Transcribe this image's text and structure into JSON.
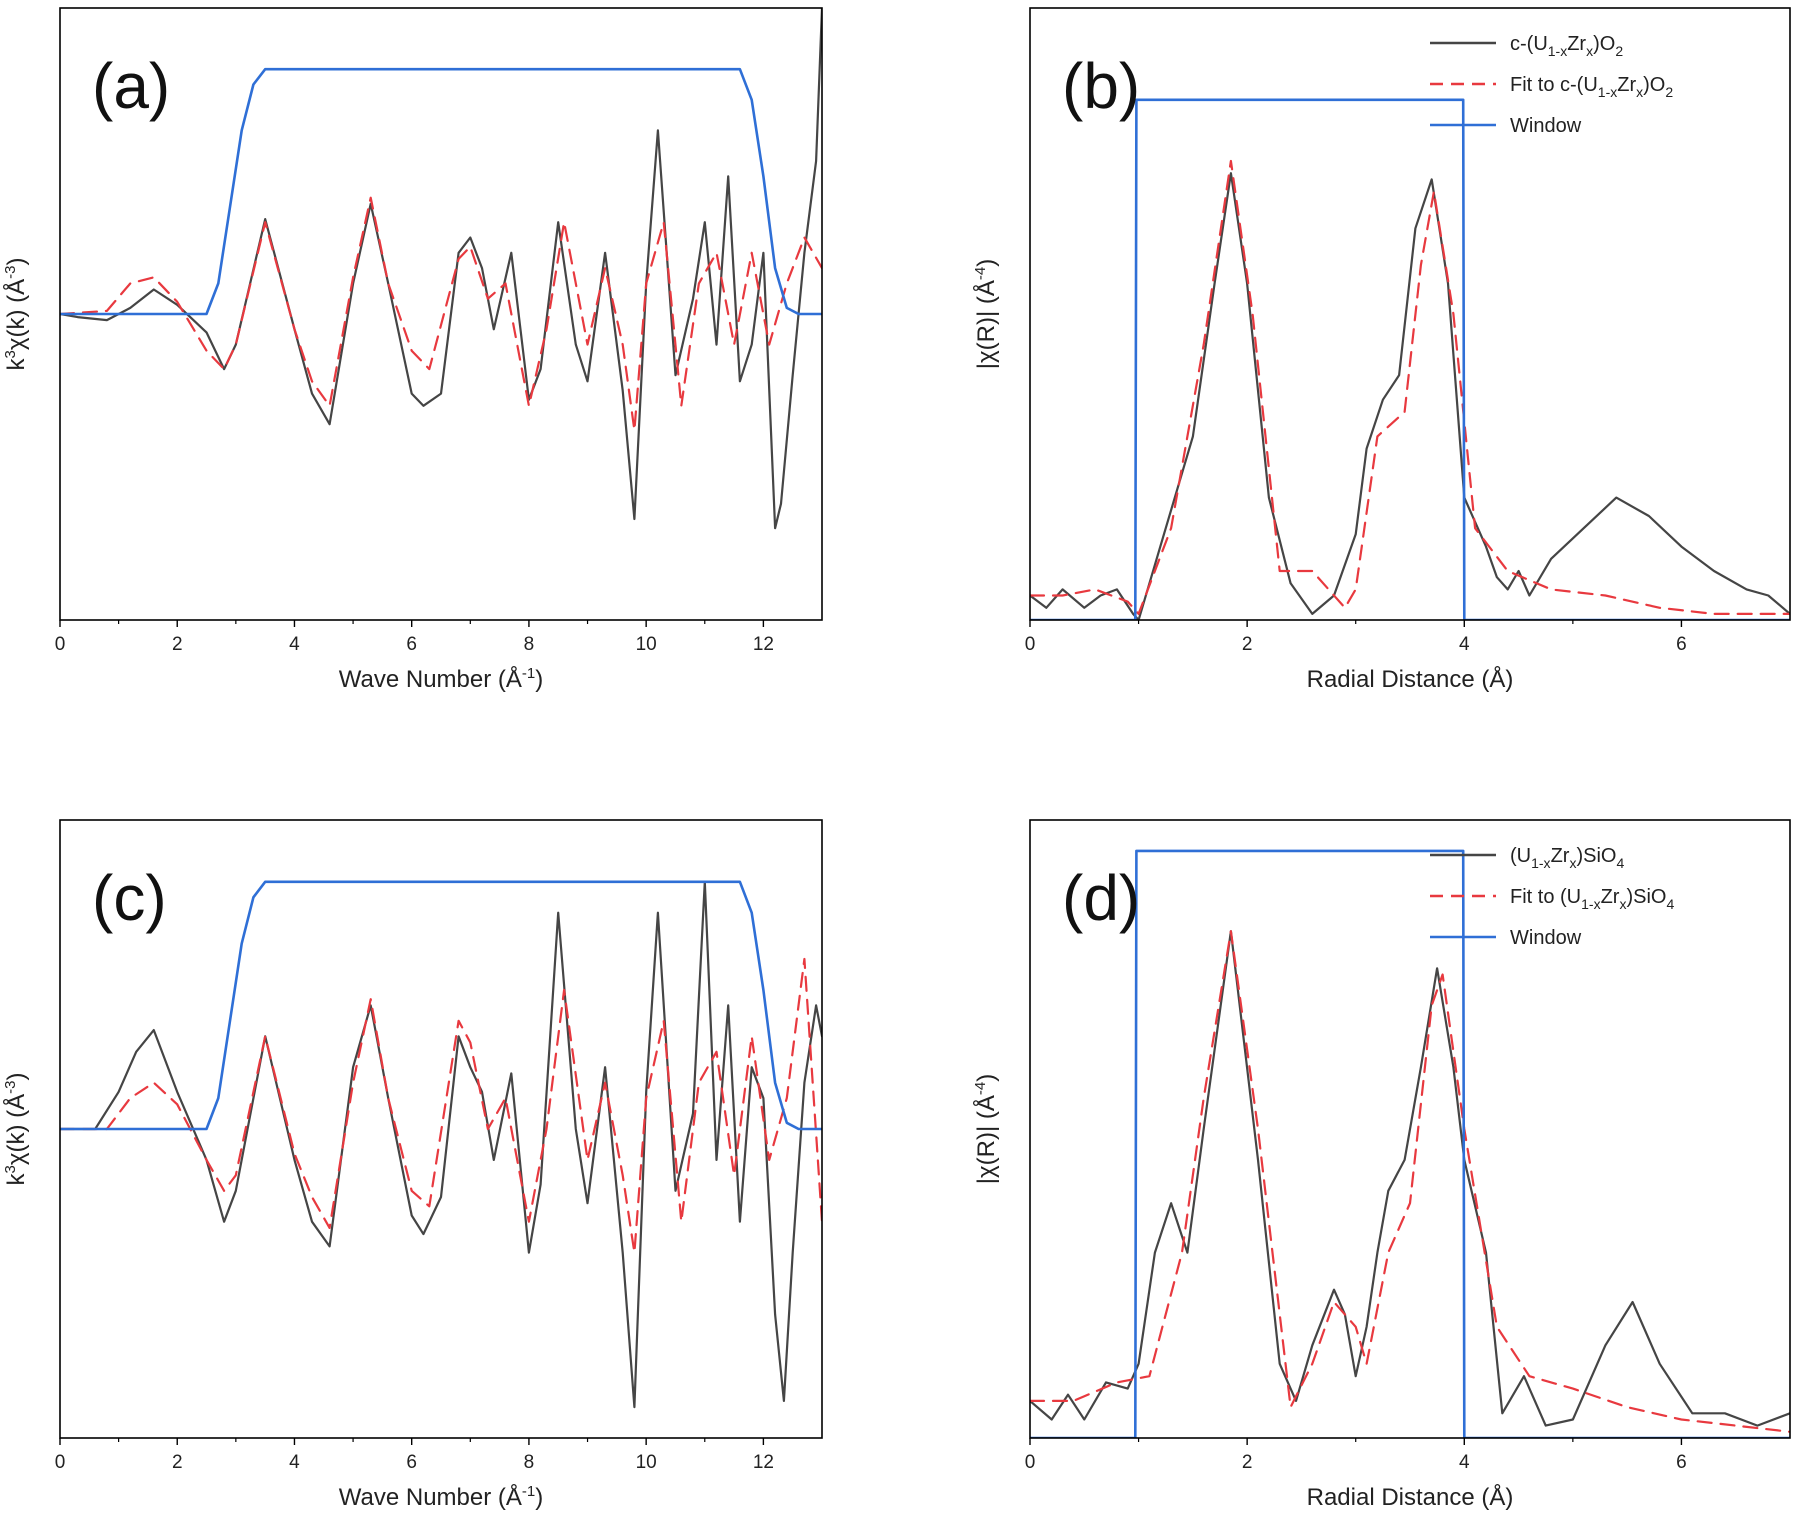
{
  "figure": {
    "colors": {
      "data": "#454545",
      "fit": "#e8393f",
      "window": "#2f6fd6",
      "axis": "#000000"
    }
  },
  "chart_data": [
    {
      "panel": "(a)",
      "type": "line",
      "xlabel_base": "Wave Number (Å",
      "xlabel_sup": "-1",
      "xlabel_tail": ")",
      "ylabel_base": "k",
      "ylabel_sup1": "3",
      "ylabel_mid": "χ(k) (Å",
      "ylabel_sup2": "-3",
      "ylabel_tail": ")",
      "xlim": [
        0,
        13
      ],
      "ylim": [
        -1.0,
        1.0
      ],
      "xticks": [
        0,
        2,
        4,
        6,
        8,
        10,
        12
      ],
      "legend": null,
      "series": [
        {
          "name": "data",
          "style": "solid",
          "x": [
            0,
            0.3,
            0.8,
            1.2,
            1.6,
            2.0,
            2.5,
            2.8,
            3.0,
            3.5,
            4.0,
            4.3,
            4.6,
            5.0,
            5.3,
            5.6,
            6.0,
            6.2,
            6.5,
            6.8,
            7.0,
            7.2,
            7.4,
            7.7,
            8.0,
            8.2,
            8.5,
            8.8,
            9.0,
            9.3,
            9.6,
            9.8,
            10.0,
            10.2,
            10.5,
            10.8,
            11.0,
            11.2,
            11.4,
            11.6,
            11.8,
            12.0,
            12.2,
            12.3,
            12.5,
            12.7,
            12.9,
            13.0
          ],
          "y": [
            0.0,
            -0.01,
            -0.02,
            0.02,
            0.08,
            0.03,
            -0.06,
            -0.18,
            -0.1,
            0.31,
            -0.05,
            -0.26,
            -0.36,
            0.1,
            0.36,
            0.1,
            -0.26,
            -0.3,
            -0.26,
            0.2,
            0.25,
            0.15,
            -0.05,
            0.2,
            -0.28,
            -0.18,
            0.3,
            -0.1,
            -0.22,
            0.2,
            -0.25,
            -0.67,
            0.1,
            0.6,
            -0.2,
            0.05,
            0.3,
            -0.1,
            0.45,
            -0.22,
            -0.1,
            0.2,
            -0.7,
            -0.62,
            -0.2,
            0.2,
            0.5,
            1.0
          ]
        },
        {
          "name": "fit",
          "style": "dashed",
          "x": [
            0,
            0.8,
            1.2,
            1.6,
            2.0,
            2.5,
            2.8,
            3.0,
            3.5,
            4.0,
            4.3,
            4.6,
            5.0,
            5.3,
            5.6,
            6.0,
            6.3,
            6.8,
            7.0,
            7.3,
            7.6,
            8.0,
            8.3,
            8.6,
            9.0,
            9.3,
            9.6,
            9.8,
            10.0,
            10.3,
            10.6,
            10.9,
            11.2,
            11.5,
            11.8,
            12.1,
            12.4,
            12.7,
            13.0
          ],
          "y": [
            0.0,
            0.01,
            0.1,
            0.12,
            0.04,
            -0.12,
            -0.18,
            -0.1,
            0.3,
            -0.05,
            -0.22,
            -0.3,
            0.12,
            0.38,
            0.1,
            -0.12,
            -0.18,
            0.18,
            0.22,
            0.05,
            0.1,
            -0.3,
            -0.05,
            0.3,
            -0.1,
            0.15,
            -0.1,
            -0.38,
            0.1,
            0.3,
            -0.3,
            0.1,
            0.2,
            -0.1,
            0.2,
            -0.1,
            0.1,
            0.25,
            0.15
          ]
        },
        {
          "name": "window",
          "style": "solid",
          "x": [
            0,
            2.5,
            2.7,
            2.9,
            3.1,
            3.3,
            3.5,
            11.6,
            11.8,
            12.0,
            12.2,
            12.4,
            12.6,
            13.0
          ],
          "y": [
            0.0,
            0.0,
            0.1,
            0.35,
            0.6,
            0.75,
            0.8,
            0.8,
            0.7,
            0.45,
            0.15,
            0.02,
            0.0,
            0.0
          ]
        }
      ]
    },
    {
      "panel": "(b)",
      "type": "line",
      "xlabel_base": "Radial Distance (Å)",
      "ylabel_base": "|χ(R)| (Å",
      "ylabel_sup": "-4",
      "ylabel_tail": ")",
      "xlim": [
        0,
        7
      ],
      "ylim": [
        0,
        1.0
      ],
      "xticks": [
        0,
        2,
        4,
        6
      ],
      "legend": [
        {
          "key": "data",
          "text_a": "c-(U",
          "sub_a": "1-x",
          "text_b": "Zr",
          "sub_b": "x",
          "text_c": ")O",
          "sub_c": "2"
        },
        {
          "key": "fit",
          "text_a": "Fit to c-(U",
          "sub_a": "1-x",
          "text_b": "Zr",
          "sub_b": "x",
          "text_c": ")O",
          "sub_c": "2"
        },
        {
          "key": "window",
          "text_a": "Window"
        }
      ],
      "series": [
        {
          "name": "data",
          "style": "solid",
          "x": [
            0,
            0.15,
            0.3,
            0.5,
            0.65,
            0.8,
            0.95,
            1.0,
            1.2,
            1.5,
            1.7,
            1.85,
            2.0,
            2.2,
            2.4,
            2.6,
            2.8,
            3.0,
            3.1,
            3.25,
            3.4,
            3.55,
            3.7,
            3.85,
            4.0,
            4.2,
            4.3,
            4.4,
            4.5,
            4.6,
            4.8,
            5.1,
            5.4,
            5.7,
            6.0,
            6.3,
            6.6,
            6.8,
            7.0
          ],
          "y": [
            0.04,
            0.02,
            0.05,
            0.02,
            0.04,
            0.05,
            0.01,
            0.0,
            0.12,
            0.3,
            0.55,
            0.73,
            0.55,
            0.2,
            0.06,
            0.01,
            0.04,
            0.14,
            0.28,
            0.36,
            0.4,
            0.64,
            0.72,
            0.55,
            0.2,
            0.12,
            0.07,
            0.05,
            0.08,
            0.04,
            0.1,
            0.15,
            0.2,
            0.17,
            0.12,
            0.08,
            0.05,
            0.04,
            0.01
          ]
        },
        {
          "name": "fit",
          "style": "dashed",
          "x": [
            0,
            0.3,
            0.6,
            0.9,
            1.0,
            1.3,
            1.6,
            1.85,
            2.05,
            2.3,
            2.6,
            2.9,
            3.0,
            3.2,
            3.45,
            3.6,
            3.72,
            3.9,
            4.1,
            4.4,
            4.8,
            5.3,
            5.8,
            6.3,
            6.8,
            7.0
          ],
          "y": [
            0.04,
            0.04,
            0.05,
            0.03,
            0.01,
            0.15,
            0.45,
            0.75,
            0.5,
            0.08,
            0.08,
            0.02,
            0.05,
            0.3,
            0.34,
            0.58,
            0.7,
            0.5,
            0.15,
            0.08,
            0.05,
            0.04,
            0.02,
            0.01,
            0.01,
            0.01
          ]
        },
        {
          "name": "window",
          "style": "solid",
          "x": [
            0,
            0.97,
            0.98,
            3.99,
            4.0,
            7.0
          ],
          "y": [
            0.0,
            0.0,
            0.85,
            0.85,
            0.0,
            0.0
          ]
        }
      ]
    },
    {
      "panel": "(c)",
      "type": "line",
      "xlabel_base": "Wave Number (Å",
      "xlabel_sup": "-1",
      "xlabel_tail": ")",
      "ylabel_base": "k",
      "ylabel_sup1": "3",
      "ylabel_mid": "χ(k) (Å",
      "ylabel_sup2": "-3",
      "ylabel_tail": ")",
      "xlim": [
        0,
        13
      ],
      "ylim": [
        -1.0,
        1.0
      ],
      "xticks": [
        0,
        2,
        4,
        6,
        8,
        10,
        12
      ],
      "legend": null,
      "series": [
        {
          "name": "data",
          "style": "solid",
          "x": [
            0,
            0.6,
            1.0,
            1.3,
            1.6,
            2.0,
            2.5,
            2.8,
            3.0,
            3.5,
            4.0,
            4.3,
            4.6,
            5.0,
            5.3,
            5.6,
            6.0,
            6.2,
            6.5,
            6.8,
            7.0,
            7.2,
            7.4,
            7.7,
            8.0,
            8.2,
            8.5,
            8.8,
            9.0,
            9.3,
            9.6,
            9.8,
            10.0,
            10.2,
            10.5,
            10.8,
            11.0,
            11.2,
            11.4,
            11.6,
            11.8,
            12.0,
            12.2,
            12.35,
            12.5,
            12.7,
            12.9,
            13.0
          ],
          "y": [
            0.0,
            0.0,
            0.12,
            0.25,
            0.32,
            0.12,
            -0.1,
            -0.3,
            -0.2,
            0.3,
            -0.1,
            -0.3,
            -0.38,
            0.2,
            0.4,
            0.1,
            -0.28,
            -0.34,
            -0.22,
            0.3,
            0.2,
            0.12,
            -0.1,
            0.18,
            -0.4,
            -0.18,
            0.7,
            0.0,
            -0.24,
            0.2,
            -0.4,
            -0.9,
            0.12,
            0.7,
            -0.2,
            0.05,
            0.8,
            -0.1,
            0.4,
            -0.3,
            0.2,
            0.1,
            -0.6,
            -0.88,
            -0.4,
            0.15,
            0.4,
            0.3
          ]
        },
        {
          "name": "fit",
          "style": "dashed",
          "x": [
            0,
            0.8,
            1.2,
            1.6,
            2.0,
            2.5,
            2.8,
            3.0,
            3.5,
            4.0,
            4.3,
            4.6,
            5.0,
            5.3,
            5.6,
            6.0,
            6.3,
            6.8,
            7.0,
            7.3,
            7.6,
            8.0,
            8.3,
            8.6,
            9.0,
            9.3,
            9.6,
            9.8,
            10.0,
            10.3,
            10.6,
            10.9,
            11.2,
            11.5,
            11.8,
            12.1,
            12.4,
            12.7,
            13.0
          ],
          "y": [
            0.0,
            0.0,
            0.1,
            0.15,
            0.08,
            -0.1,
            -0.2,
            -0.15,
            0.3,
            -0.08,
            -0.22,
            -0.32,
            0.15,
            0.42,
            0.1,
            -0.2,
            -0.25,
            0.35,
            0.28,
            0.0,
            0.1,
            -0.3,
            0.0,
            0.45,
            -0.1,
            0.15,
            -0.15,
            -0.4,
            0.1,
            0.35,
            -0.3,
            0.15,
            0.25,
            -0.15,
            0.3,
            -0.1,
            0.1,
            0.55,
            -0.3
          ]
        },
        {
          "name": "window",
          "style": "solid",
          "x": [
            0,
            2.5,
            2.7,
            2.9,
            3.1,
            3.3,
            3.5,
            11.6,
            11.8,
            12.0,
            12.2,
            12.4,
            12.6,
            13.0
          ],
          "y": [
            0.0,
            0.0,
            0.1,
            0.35,
            0.6,
            0.75,
            0.8,
            0.8,
            0.7,
            0.45,
            0.15,
            0.02,
            0.0,
            0.0
          ]
        }
      ]
    },
    {
      "panel": "(d)",
      "type": "line",
      "xlabel_base": "Radial Distance (Å)",
      "ylabel_base": "|χ(R)| (Å",
      "ylabel_sup": "-4",
      "ylabel_tail": ")",
      "xlim": [
        0,
        7
      ],
      "ylim": [
        0,
        1.0
      ],
      "xticks": [
        0,
        2,
        4,
        6
      ],
      "legend": [
        {
          "key": "data",
          "text_a": "(U",
          "sub_a": "1-x",
          "text_b": "Zr",
          "sub_b": "x",
          "text_c": ")SiO",
          "sub_c": "4"
        },
        {
          "key": "fit",
          "text_a": "Fit to (U",
          "sub_a": "1-x",
          "text_b": "Zr",
          "sub_b": "x",
          "text_c": ")SiO",
          "sub_c": "4"
        },
        {
          "key": "window",
          "text_a": "Window"
        }
      ],
      "series": [
        {
          "name": "data",
          "style": "solid",
          "x": [
            0,
            0.2,
            0.35,
            0.5,
            0.7,
            0.9,
            1.0,
            1.15,
            1.3,
            1.45,
            1.6,
            1.85,
            2.1,
            2.3,
            2.45,
            2.6,
            2.8,
            2.9,
            3.0,
            3.1,
            3.2,
            3.3,
            3.45,
            3.6,
            3.75,
            3.9,
            4.0,
            4.2,
            4.35,
            4.55,
            4.75,
            5.0,
            5.3,
            5.55,
            5.8,
            6.1,
            6.4,
            6.7,
            7.0
          ],
          "y": [
            0.06,
            0.03,
            0.07,
            0.03,
            0.09,
            0.08,
            0.12,
            0.3,
            0.38,
            0.3,
            0.5,
            0.82,
            0.45,
            0.12,
            0.06,
            0.15,
            0.24,
            0.2,
            0.1,
            0.18,
            0.3,
            0.4,
            0.45,
            0.6,
            0.76,
            0.6,
            0.45,
            0.3,
            0.04,
            0.1,
            0.02,
            0.03,
            0.15,
            0.22,
            0.12,
            0.04,
            0.04,
            0.02,
            0.04
          ]
        },
        {
          "name": "fit",
          "style": "dashed",
          "x": [
            0,
            0.4,
            0.8,
            1.1,
            1.4,
            1.6,
            1.85,
            2.1,
            2.4,
            2.6,
            2.8,
            3.0,
            3.1,
            3.3,
            3.5,
            3.7,
            3.8,
            4.0,
            4.3,
            4.6,
            5.0,
            5.5,
            6.0,
            6.5,
            7.0
          ],
          "y": [
            0.06,
            0.06,
            0.09,
            0.1,
            0.3,
            0.55,
            0.82,
            0.5,
            0.05,
            0.12,
            0.22,
            0.18,
            0.12,
            0.3,
            0.38,
            0.7,
            0.75,
            0.5,
            0.18,
            0.1,
            0.08,
            0.05,
            0.03,
            0.02,
            0.01
          ]
        },
        {
          "name": "window",
          "style": "solid",
          "x": [
            0,
            0.97,
            0.98,
            3.99,
            4.0,
            7.0
          ],
          "y": [
            0.0,
            0.0,
            0.95,
            0.95,
            0.0,
            0.0
          ]
        }
      ]
    }
  ]
}
